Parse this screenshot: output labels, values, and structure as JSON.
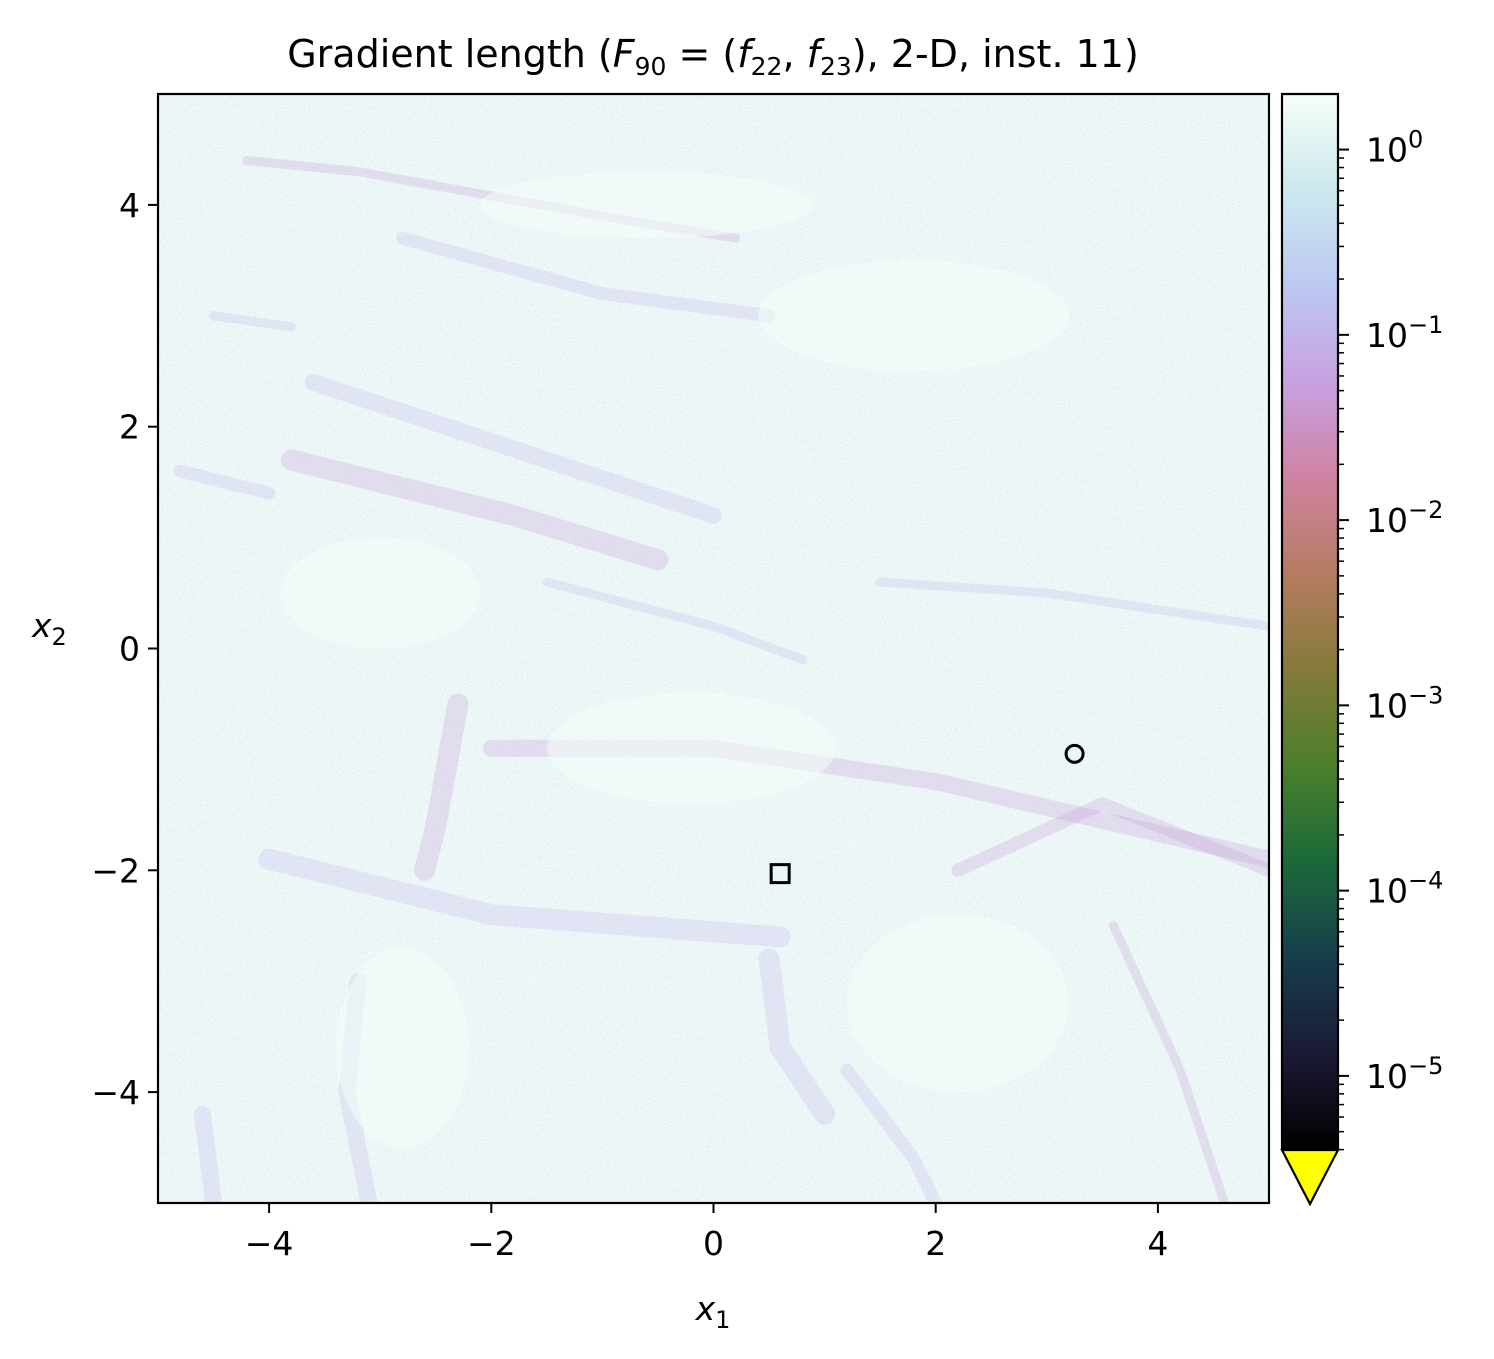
{
  "chart_data": {
    "type": "heatmap",
    "title_parts": {
      "prefix": "Gradient length (",
      "F": "F",
      "F_sub": "90",
      "eq": " = (",
      "f1": "f",
      "f1_sub": "22",
      "comma": ", ",
      "f2": "f",
      "f2_sub": "23",
      "suffix": "), 2-D, inst. 11)"
    },
    "xlabel": {
      "var": "x",
      "sub": "1"
    },
    "ylabel": {
      "var": "x",
      "sub": "2"
    },
    "xlim": [
      -5,
      5
    ],
    "ylim": [
      -5,
      5
    ],
    "xticks": [
      -4,
      -2,
      0,
      2,
      4
    ],
    "yticks": [
      -4,
      -2,
      0,
      2,
      4
    ],
    "xtick_labels": [
      "−4",
      "−2",
      "0",
      "2",
      "4"
    ],
    "ytick_labels": [
      "−4",
      "−2",
      "0",
      "2",
      "4"
    ],
    "colorbar": {
      "scale": "log",
      "vmin_exp": -5.4,
      "vmax_exp": 0.3,
      "ticks": [
        {
          "exp": 0,
          "base": "10",
          "sup": "0"
        },
        {
          "exp": -1,
          "base": "10",
          "sup": "−1"
        },
        {
          "exp": -2,
          "base": "10",
          "sup": "−2"
        },
        {
          "exp": -3,
          "base": "10",
          "sup": "−3"
        },
        {
          "exp": -4,
          "base": "10",
          "sup": "−4"
        },
        {
          "exp": -5,
          "base": "10",
          "sup": "−5"
        }
      ],
      "colormap": [
        "#000000",
        "#1b1a35",
        "#183d4c",
        "#1a6a3a",
        "#4b7f2b",
        "#857a39",
        "#b47c61",
        "#d082a2",
        "#c7a1e0",
        "#bcc8f2",
        "#cce9ee",
        "#f6fdf8"
      ],
      "extend_min_color": "#ffff00"
    },
    "background_value": "≈1 (near white-green, |∇| ~ 10^0)",
    "ridge_color": "#c4b8ee",
    "ridge_dark_color": "#c69bd9",
    "markers": [
      {
        "shape": "circle",
        "x": 3.25,
        "y": -0.95
      },
      {
        "shape": "square",
        "x": 0.6,
        "y": -2.03
      }
    ]
  }
}
